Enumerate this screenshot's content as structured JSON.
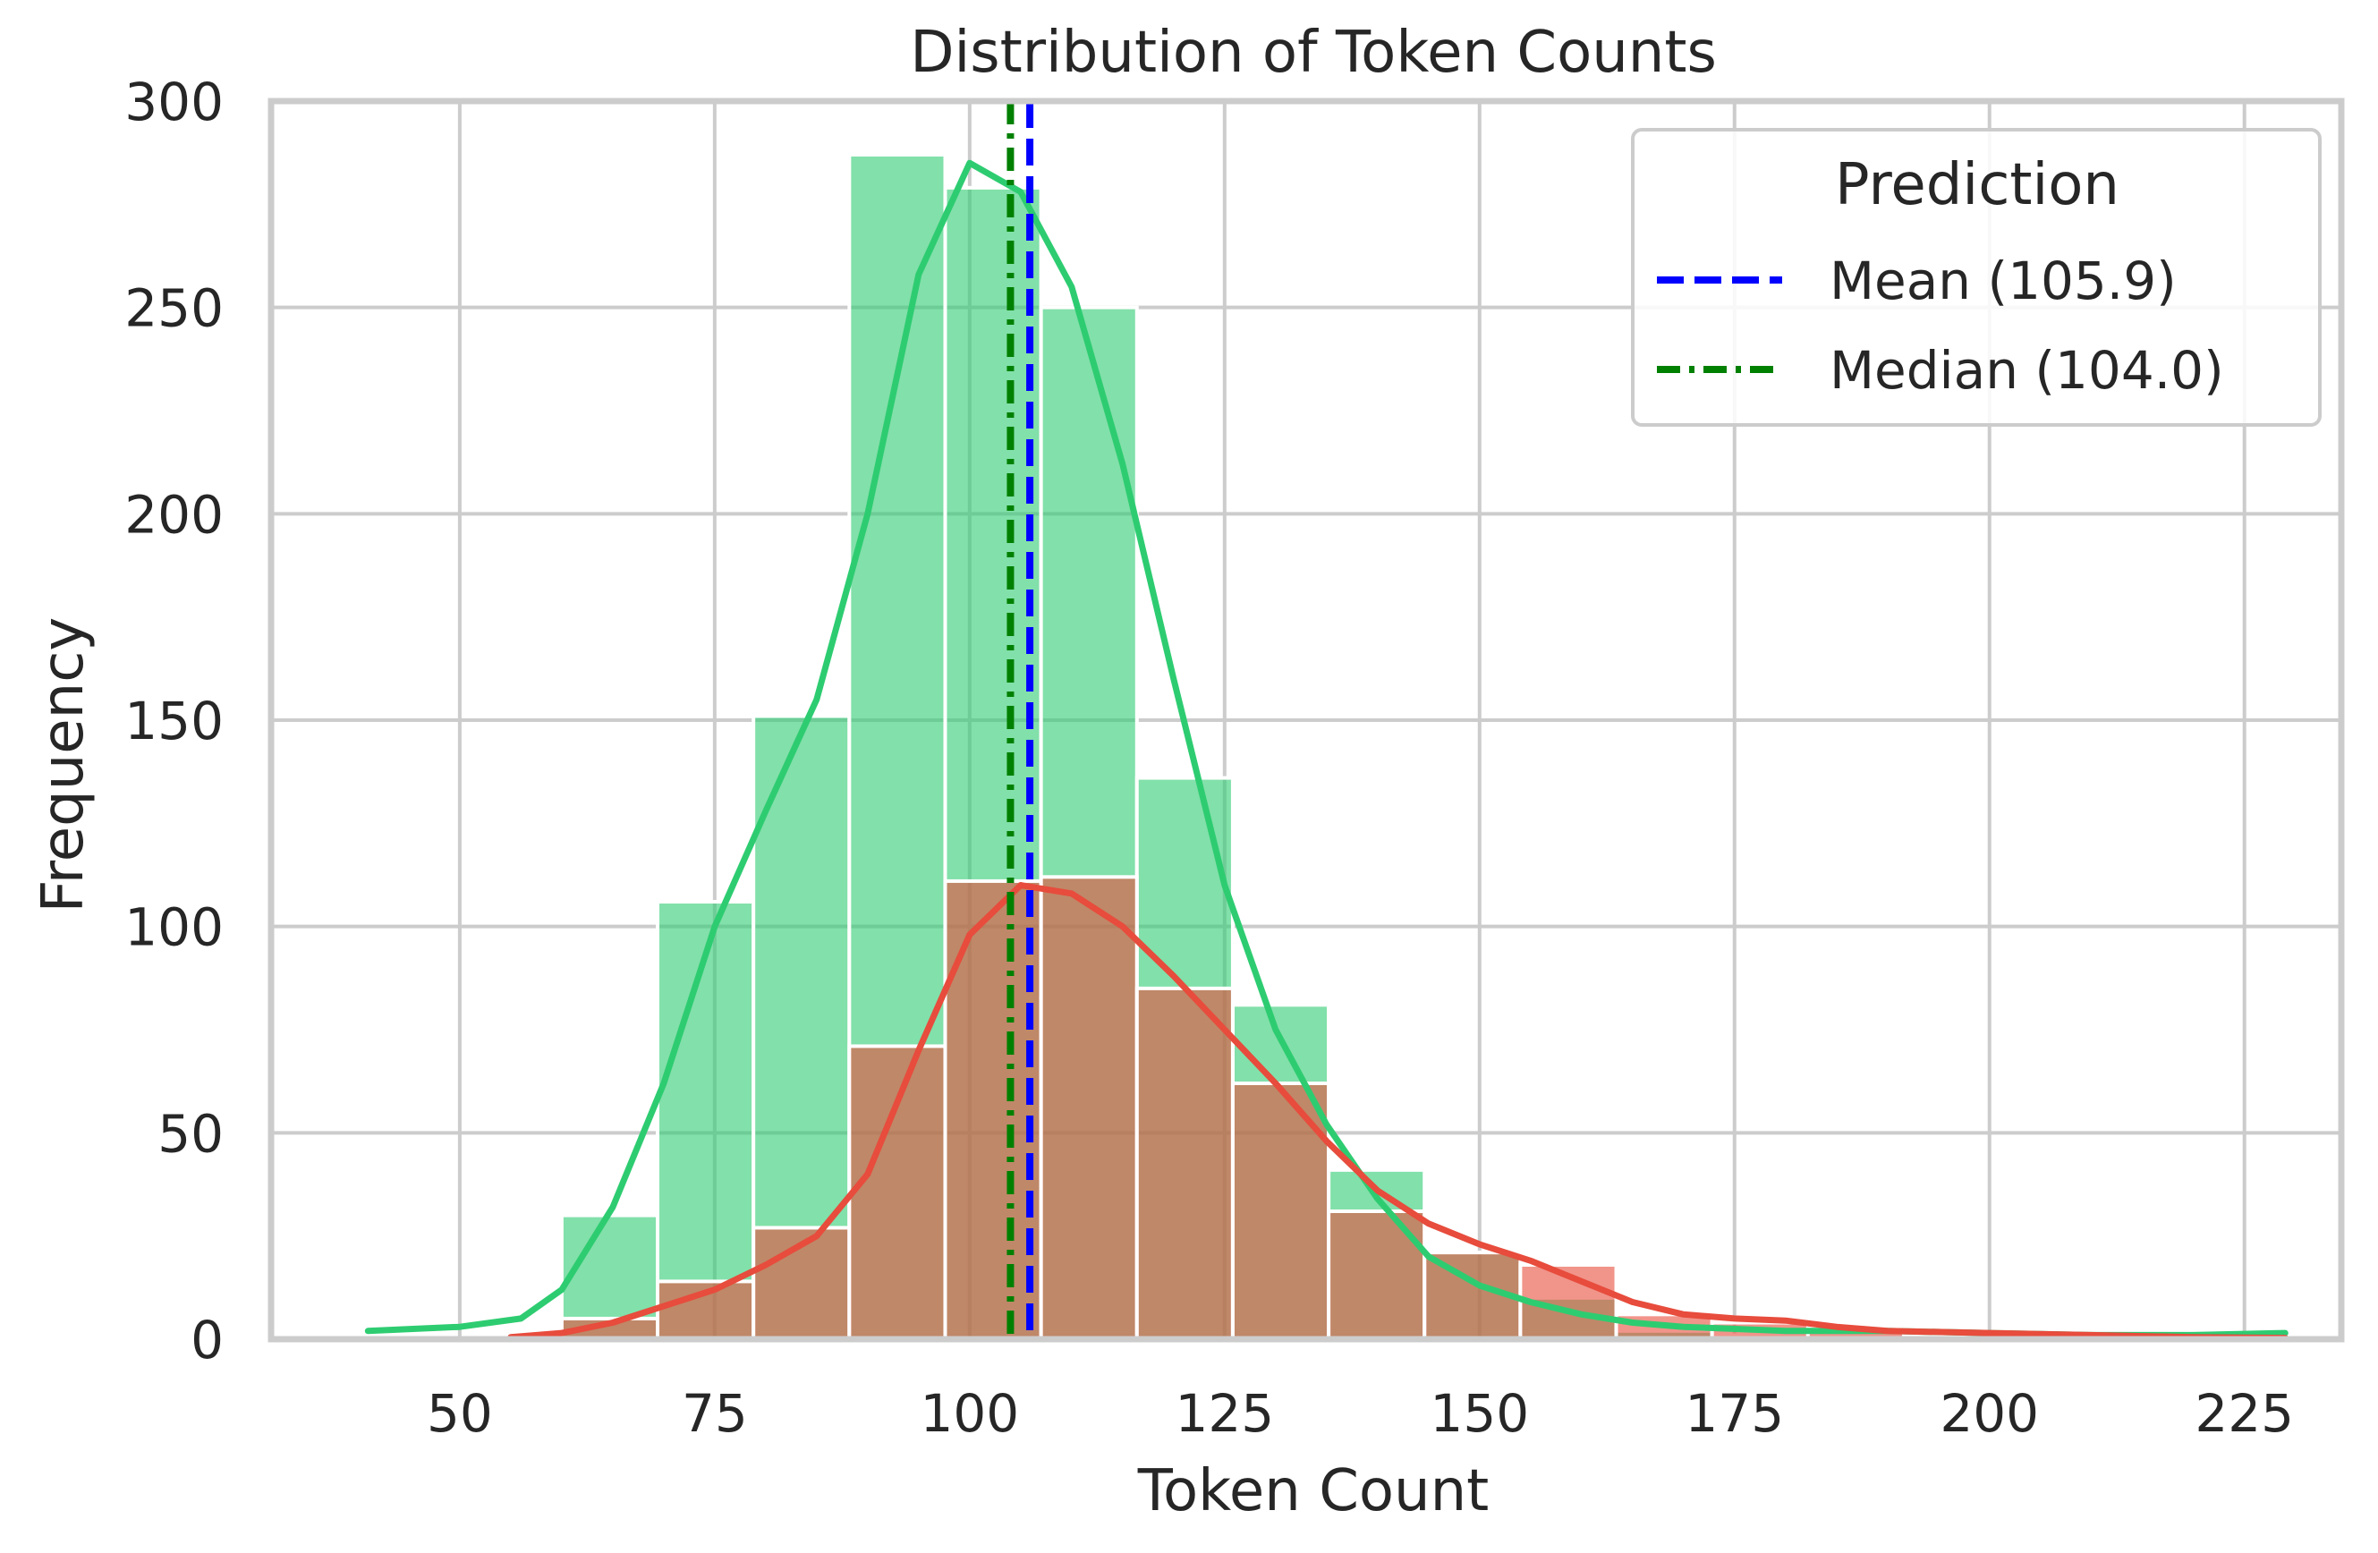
{
  "chart_data": {
    "type": "histogram",
    "title": "Distribution of Token Counts",
    "xlabel": "Token Count",
    "ylabel": "Frequency",
    "xlim": [
      31.5,
      234.5
    ],
    "ylim": [
      0,
      300
    ],
    "xticks": [
      50,
      75,
      100,
      125,
      150,
      175,
      200,
      225
    ],
    "yticks": [
      0,
      50,
      100,
      150,
      200,
      250,
      300
    ],
    "grid": true,
    "bin_edges": [
      60,
      69.4,
      78.8,
      88.2,
      97.6,
      107,
      116.4,
      125.8,
      135.2,
      144.6,
      154,
      163.4,
      172.8,
      182.2,
      191.6,
      201,
      210.4,
      219.8,
      229.2
    ],
    "series": [
      {
        "color": "#2ecc71",
        "counts": [
          30,
          106,
          151,
          287,
          279,
          250,
          136,
          81,
          41,
          21,
          10,
          2,
          1,
          1,
          0,
          0,
          0,
          1
        ],
        "kde": [
          [
            41,
            2
          ],
          [
            50,
            3
          ],
          [
            56,
            5
          ],
          [
            60,
            12
          ],
          [
            65,
            32
          ],
          [
            70,
            62
          ],
          [
            75,
            100
          ],
          [
            80,
            128
          ],
          [
            85,
            155
          ],
          [
            90,
            200
          ],
          [
            95,
            258
          ],
          [
            100,
            285
          ],
          [
            105,
            278
          ],
          [
            110,
            255
          ],
          [
            115,
            212
          ],
          [
            120,
            160
          ],
          [
            125,
            110
          ],
          [
            130,
            75
          ],
          [
            135,
            52
          ],
          [
            140,
            34
          ],
          [
            145,
            20
          ],
          [
            150,
            13
          ],
          [
            155,
            9
          ],
          [
            160,
            6
          ],
          [
            165,
            4
          ],
          [
            170,
            3
          ],
          [
            180,
            2
          ],
          [
            190,
            2
          ],
          [
            200,
            1.5
          ],
          [
            210,
            1
          ],
          [
            220,
            1
          ],
          [
            229,
            1.5
          ]
        ]
      },
      {
        "color": "#e74c3c",
        "counts": [
          5,
          14,
          27,
          71,
          111,
          112,
          85,
          62,
          31,
          21,
          18,
          6,
          4,
          3,
          1,
          1,
          0,
          0
        ],
        "kde": [
          [
            55,
            0.5
          ],
          [
            60,
            1.5
          ],
          [
            65,
            4
          ],
          [
            70,
            8
          ],
          [
            75,
            12
          ],
          [
            80,
            18
          ],
          [
            85,
            25
          ],
          [
            90,
            40
          ],
          [
            95,
            70
          ],
          [
            100,
            98
          ],
          [
            105,
            110
          ],
          [
            110,
            108
          ],
          [
            115,
            100
          ],
          [
            120,
            88
          ],
          [
            125,
            75
          ],
          [
            130,
            62
          ],
          [
            135,
            48
          ],
          [
            140,
            36
          ],
          [
            145,
            28
          ],
          [
            150,
            23
          ],
          [
            155,
            19
          ],
          [
            160,
            14
          ],
          [
            165,
            9
          ],
          [
            170,
            6
          ],
          [
            175,
            5
          ],
          [
            180,
            4.5
          ],
          [
            185,
            3
          ],
          [
            190,
            2
          ],
          [
            200,
            1.5
          ],
          [
            210,
            1
          ],
          [
            220,
            0.5
          ],
          [
            229,
            0.3
          ]
        ]
      }
    ],
    "lines": [
      {
        "label": "Mean (105.9)",
        "x": 105.9,
        "color": "#0000ff",
        "style": "dashed"
      },
      {
        "label": "Median (104.0)",
        "x": 104.0,
        "color": "#008000",
        "style": "dashdot"
      }
    ],
    "legend": {
      "title": "Prediction",
      "position": "upper right"
    }
  }
}
